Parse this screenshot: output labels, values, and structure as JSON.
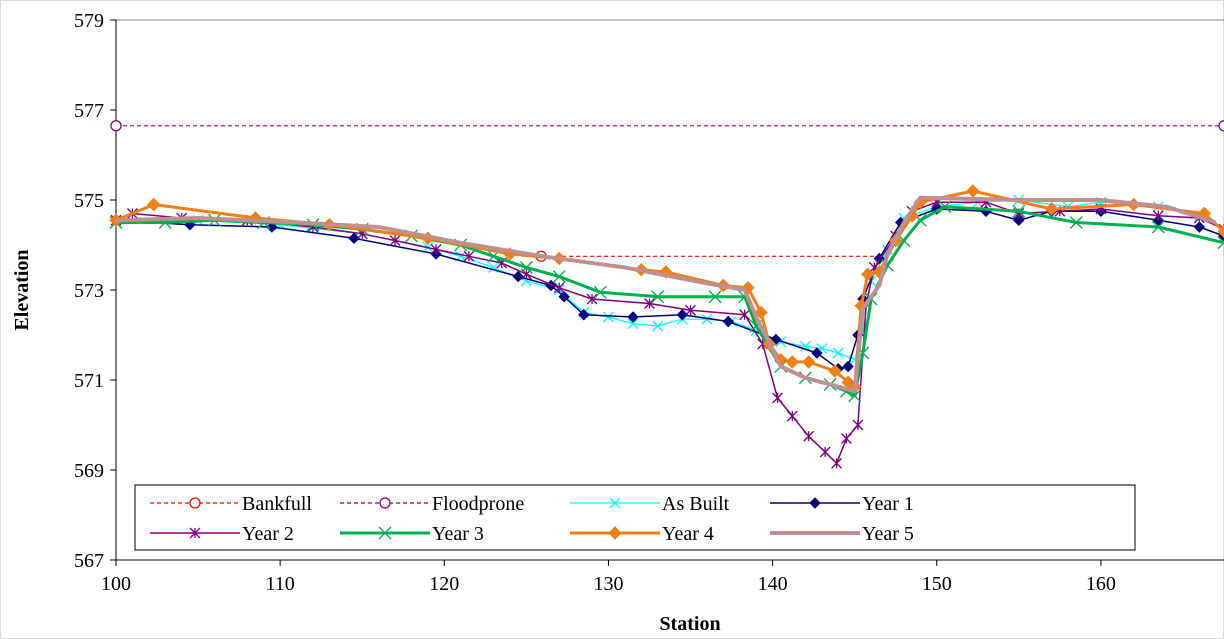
{
  "chart_data": {
    "type": "line",
    "xlabel": "Station",
    "ylabel": "Elevation",
    "xlim": [
      100,
      167.5
    ],
    "ylim": [
      567,
      579
    ],
    "xticks": [
      100,
      110,
      120,
      130,
      140,
      150,
      160
    ],
    "yticks": [
      567,
      569,
      571,
      573,
      575,
      577,
      579
    ],
    "grid": false,
    "legend_position": "bottom-inside",
    "series": [
      {
        "name": "Bankfull",
        "color": "#ff0000",
        "style": "dashed",
        "marker": "circle-open",
        "width": 1.2,
        "points": [
          [
            125.9,
            573.75
          ],
          [
            146.2,
            573.75
          ]
        ],
        "markers_at": [
          0
        ]
      },
      {
        "name": "Floodprone",
        "color": "#800080",
        "style": "dashed",
        "marker": "circle-open",
        "width": 1.2,
        "points": [
          [
            100,
            576.65
          ],
          [
            167.5,
            576.65
          ]
        ],
        "markers_at": [
          0,
          1
        ]
      },
      {
        "name": "As Built",
        "color": "#00ffff",
        "style": "solid",
        "marker": "x",
        "width": 1.2,
        "points": [
          [
            100,
            574.5
          ],
          [
            105,
            574.55
          ],
          [
            110,
            574.45
          ],
          [
            115,
            574.25
          ],
          [
            119,
            573.95
          ],
          [
            121,
            573.75
          ],
          [
            123,
            573.5
          ],
          [
            125,
            573.2
          ],
          [
            127,
            573.0
          ],
          [
            128.5,
            572.5
          ],
          [
            130,
            572.4
          ],
          [
            131.5,
            572.25
          ],
          [
            133,
            572.2
          ],
          [
            134.5,
            572.35
          ],
          [
            136,
            572.35
          ],
          [
            137.5,
            572.3
          ],
          [
            139,
            572.1
          ],
          [
            140.5,
            571.85
          ],
          [
            142,
            571.75
          ],
          [
            143,
            571.7
          ],
          [
            144,
            571.6
          ],
          [
            145,
            571.45
          ],
          [
            145.5,
            572.1
          ],
          [
            146,
            573.2
          ],
          [
            147,
            573.9
          ],
          [
            148,
            574.6
          ],
          [
            150,
            574.85
          ],
          [
            152.5,
            574.95
          ],
          [
            155,
            575.0
          ],
          [
            158,
            574.85
          ],
          [
            160,
            574.95
          ],
          [
            163.5,
            574.85
          ],
          [
            166,
            574.65
          ]
        ]
      },
      {
        "name": "Year 1",
        "color": "#000080",
        "style": "solid",
        "marker": "diamond",
        "width": 1.5,
        "points": [
          [
            100,
            574.55
          ],
          [
            104.5,
            574.45
          ],
          [
            109.5,
            574.4
          ],
          [
            114.5,
            574.15
          ],
          [
            119.5,
            573.8
          ],
          [
            124.5,
            573.3
          ],
          [
            126.5,
            573.1
          ],
          [
            127.3,
            572.85
          ],
          [
            128.5,
            572.45
          ],
          [
            131.5,
            572.4
          ],
          [
            134.5,
            572.45
          ],
          [
            137.3,
            572.3
          ],
          [
            140.2,
            571.9
          ],
          [
            142.7,
            571.6
          ],
          [
            144,
            571.25
          ],
          [
            144.6,
            571.3
          ],
          [
            145.2,
            572.0
          ],
          [
            145.5,
            572.8
          ],
          [
            146.5,
            573.7
          ],
          [
            147.8,
            574.5
          ],
          [
            150,
            574.8
          ],
          [
            153,
            574.75
          ],
          [
            155,
            574.55
          ],
          [
            157,
            574.75
          ],
          [
            160,
            574.75
          ],
          [
            163.5,
            574.55
          ],
          [
            166,
            574.4
          ],
          [
            167.5,
            574.2
          ]
        ]
      },
      {
        "name": "Year 2",
        "color": "#800080",
        "style": "solid",
        "marker": "star",
        "width": 1.5,
        "points": [
          [
            100,
            574.55
          ],
          [
            101,
            574.7
          ],
          [
            104,
            574.6
          ],
          [
            108,
            574.55
          ],
          [
            112,
            574.4
          ],
          [
            115,
            574.25
          ],
          [
            117,
            574.1
          ],
          [
            119.5,
            573.9
          ],
          [
            121.5,
            573.75
          ],
          [
            123.5,
            573.6
          ],
          [
            125,
            573.35
          ],
          [
            127,
            573.05
          ],
          [
            129,
            572.8
          ],
          [
            132.5,
            572.7
          ],
          [
            135,
            572.55
          ],
          [
            138.3,
            572.45
          ],
          [
            139.4,
            571.8
          ],
          [
            140.3,
            570.6
          ],
          [
            141.2,
            570.2
          ],
          [
            142.2,
            569.75
          ],
          [
            143.2,
            569.4
          ],
          [
            143.9,
            569.15
          ],
          [
            144.5,
            569.7
          ],
          [
            145.2,
            570.0
          ],
          [
            145.7,
            572.7
          ],
          [
            146.2,
            573.5
          ],
          [
            147.5,
            574.2
          ],
          [
            148.5,
            574.75
          ],
          [
            150,
            574.95
          ],
          [
            153,
            574.95
          ],
          [
            155,
            574.7
          ],
          [
            157.5,
            574.75
          ],
          [
            160,
            574.8
          ],
          [
            163.5,
            574.65
          ],
          [
            166,
            574.6
          ],
          [
            167.5,
            574.35
          ]
        ]
      },
      {
        "name": "Year 3",
        "color": "#00b050",
        "style": "solid",
        "marker": "x",
        "width": 3,
        "points": [
          [
            100,
            574.5
          ],
          [
            103,
            574.5
          ],
          [
            106,
            574.55
          ],
          [
            109,
            574.5
          ],
          [
            112,
            574.45
          ],
          [
            115,
            574.35
          ],
          [
            118,
            574.2
          ],
          [
            121,
            574.0
          ],
          [
            123,
            573.75
          ],
          [
            125,
            573.5
          ],
          [
            127,
            573.3
          ],
          [
            129.5,
            572.95
          ],
          [
            133,
            572.85
          ],
          [
            136.5,
            572.85
          ],
          [
            138.3,
            572.85
          ],
          [
            139,
            572.2
          ],
          [
            140.5,
            571.3
          ],
          [
            142,
            571.05
          ],
          [
            143.5,
            570.9
          ],
          [
            144.5,
            570.75
          ],
          [
            145,
            570.65
          ],
          [
            145.5,
            571.6
          ],
          [
            146,
            572.8
          ],
          [
            147,
            573.55
          ],
          [
            148,
            574.1
          ],
          [
            149,
            574.55
          ],
          [
            150.5,
            574.85
          ],
          [
            155,
            574.75
          ],
          [
            158.5,
            574.5
          ],
          [
            163.5,
            574.4
          ],
          [
            167.5,
            574.05
          ]
        ]
      },
      {
        "name": "Year 4",
        "color": "#f07f16",
        "style": "solid",
        "marker": "diamond",
        "width": 3,
        "points": [
          [
            100,
            574.55
          ],
          [
            102.3,
            574.9
          ],
          [
            108.5,
            574.6
          ],
          [
            113,
            574.45
          ],
          [
            119,
            574.15
          ],
          [
            124,
            573.8
          ],
          [
            127,
            573.7
          ],
          [
            132,
            573.45
          ],
          [
            133.5,
            573.4
          ],
          [
            137,
            573.1
          ],
          [
            138.5,
            573.05
          ],
          [
            139.3,
            572.5
          ],
          [
            139.8,
            571.8
          ],
          [
            140.5,
            571.45
          ],
          [
            141.2,
            571.4
          ],
          [
            142.2,
            571.4
          ],
          [
            143.8,
            571.2
          ],
          [
            144.6,
            570.95
          ],
          [
            145,
            570.85
          ],
          [
            145.4,
            572.65
          ],
          [
            145.8,
            573.35
          ],
          [
            146.5,
            573.4
          ],
          [
            147.5,
            574.1
          ],
          [
            148.5,
            574.65
          ],
          [
            149,
            574.95
          ],
          [
            152.2,
            575.2
          ],
          [
            157,
            574.8
          ],
          [
            162,
            574.9
          ],
          [
            166.3,
            574.7
          ],
          [
            167.5,
            574.3
          ]
        ]
      },
      {
        "name": "Year 5",
        "color": "#c09090",
        "style": "solid",
        "marker": "none",
        "width": 4,
        "points": [
          [
            100,
            574.55
          ],
          [
            105,
            574.6
          ],
          [
            111,
            574.5
          ],
          [
            116,
            574.4
          ],
          [
            121,
            574.05
          ],
          [
            126,
            573.75
          ],
          [
            131,
            573.5
          ],
          [
            136,
            573.15
          ],
          [
            138.3,
            573.0
          ],
          [
            139,
            572.4
          ],
          [
            140.5,
            571.3
          ],
          [
            142,
            571.05
          ],
          [
            144,
            570.85
          ],
          [
            145,
            570.75
          ],
          [
            145.5,
            572.6
          ],
          [
            146.5,
            573.1
          ],
          [
            147,
            573.8
          ],
          [
            148,
            574.5
          ],
          [
            149,
            575.05
          ],
          [
            155,
            575.0
          ],
          [
            160,
            575.0
          ],
          [
            164,
            574.85
          ],
          [
            167,
            574.5
          ]
        ]
      }
    ]
  }
}
